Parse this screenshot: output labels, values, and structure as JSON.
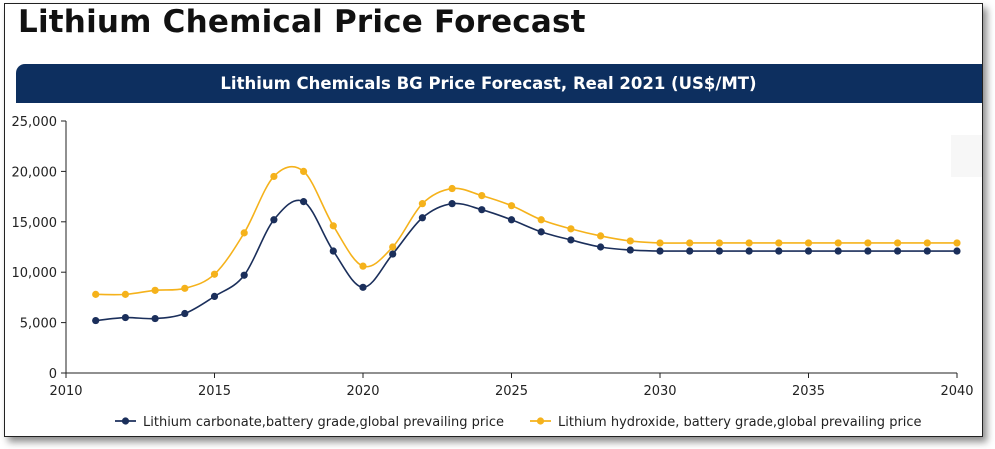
{
  "page": {
    "title": "Lithium Chemical Price Forecast"
  },
  "chart_data": {
    "type": "line",
    "title": "Lithium Chemicals BG Price Forecast, Real 2021 (US$/MT)",
    "xlabel": "",
    "ylabel": "",
    "xlim": [
      2010,
      2040
    ],
    "ylim": [
      0,
      25000
    ],
    "x_ticks": [
      2010,
      2015,
      2020,
      2025,
      2030,
      2035,
      2040
    ],
    "x_tick_labels": [
      "2010",
      "2015",
      "2020",
      "2025",
      "2030",
      "2035",
      "2040"
    ],
    "y_ticks": [
      0,
      5000,
      10000,
      15000,
      20000,
      25000
    ],
    "y_tick_labels": [
      "0",
      "5,000",
      "10,000",
      "15,000",
      "20,000",
      "25,000"
    ],
    "grid": false,
    "smooth": true,
    "legend_position": "bottom",
    "x": [
      2011,
      2012,
      2013,
      2014,
      2015,
      2016,
      2017,
      2018,
      2019,
      2020,
      2021,
      2022,
      2023,
      2024,
      2025,
      2026,
      2027,
      2028,
      2029,
      2030,
      2031,
      2032,
      2033,
      2034,
      2035,
      2036,
      2037,
      2038,
      2039,
      2040
    ],
    "series": [
      {
        "name": "Lithium carbonate,battery grade,global prevailing price",
        "color": "#1b2f5b",
        "values": [
          5200,
          5500,
          5400,
          5900,
          7600,
          9700,
          15200,
          17000,
          12100,
          8500,
          11800,
          15400,
          16800,
          16200,
          15200,
          14000,
          13200,
          12500,
          12200,
          12100,
          12100,
          12100,
          12100,
          12100,
          12100,
          12100,
          12100,
          12100,
          12100,
          12100
        ]
      },
      {
        "name": "Lithium hydroxide, battery grade,global prevailing price",
        "color": "#f5b21b",
        "values": [
          7800,
          7800,
          8200,
          8400,
          9800,
          13900,
          19500,
          20000,
          14600,
          10600,
          12500,
          16800,
          18300,
          17600,
          16600,
          15200,
          14300,
          13600,
          13100,
          12900,
          12900,
          12900,
          12900,
          12900,
          12900,
          12900,
          12900,
          12900,
          12900,
          12900
        ]
      }
    ]
  }
}
